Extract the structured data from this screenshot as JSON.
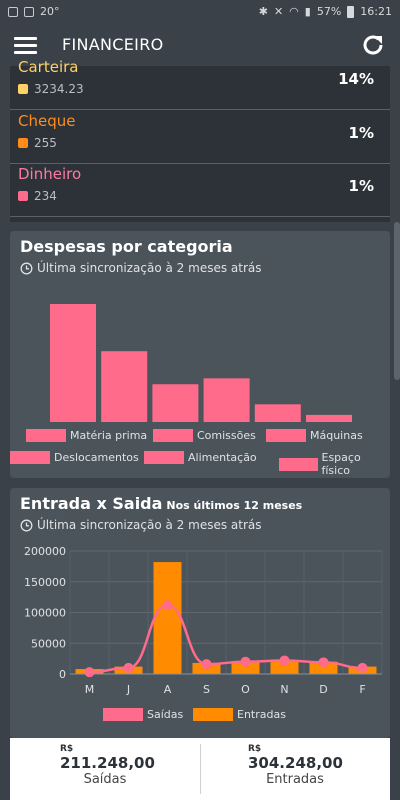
{
  "status_bar": {
    "notif_text": "20°",
    "battery": "57%",
    "time": "16:21"
  },
  "appbar": {
    "title": "FINANCEIRO"
  },
  "accounts": [
    {
      "name": "Carteira",
      "value": "3234.23",
      "percent": "14%",
      "color": "#ffd166",
      "swatch": "#ffd166"
    },
    {
      "name": "Cheque",
      "value": "255",
      "percent": "1%",
      "color": "#ff8c1a",
      "swatch": "#ff8c1a"
    },
    {
      "name": "Dinheiro",
      "value": "234",
      "percent": "1%",
      "color": "#ff7aa2",
      "swatch": "#ff6b8b"
    }
  ],
  "expenses": {
    "title": "Despesas por categoria",
    "sync": "Última sincronização à 2 meses atrás",
    "legend": [
      "Matéria prima",
      "Comissões",
      "Máquinas",
      "Deslocamentos",
      "Alimentação",
      "Espaço físico"
    ]
  },
  "flow": {
    "title": "Entrada x Saida",
    "subtitle": "Nos últimos 12 meses",
    "sync": "Última sincronização à 2 meses atrás",
    "legend": [
      "Saídas",
      "Entradas"
    ]
  },
  "totals": {
    "out": {
      "currency": "R$",
      "amount": "211.248,00",
      "label": "Saídas"
    },
    "in": {
      "currency": "R$",
      "amount": "304.248,00",
      "label": "Entradas"
    }
  },
  "chart_data": [
    {
      "type": "bar",
      "title": "Despesas por categoria",
      "categories": [
        "Matéria prima",
        "Comissões",
        "Máquinas",
        "Deslocamentos",
        "Alimentação",
        "Espaço físico"
      ],
      "values": [
        100,
        60,
        32,
        37,
        15,
        6
      ],
      "ylim": [
        0,
        100
      ],
      "color": "#ff6b8b",
      "legend_position": "bottom",
      "grid": false
    },
    {
      "type": "bar",
      "title": "Entrada x Saida",
      "categories": [
        "M",
        "J",
        "A",
        "S",
        "O",
        "N",
        "D",
        "F"
      ],
      "yticks": [
        "0",
        "50000",
        "100000",
        "150000",
        "200000"
      ],
      "ylim": [
        0,
        200000
      ],
      "series": [
        {
          "name": "Entradas",
          "type": "bar",
          "color": "#ff8c00",
          "values": [
            8000,
            12000,
            182000,
            18000,
            20000,
            22000,
            20000,
            12000
          ]
        },
        {
          "name": "Saídas",
          "type": "line",
          "color": "#ff6b8b",
          "values": [
            3000,
            10000,
            112000,
            16000,
            20000,
            22000,
            19000,
            10000
          ]
        }
      ],
      "legend_position": "bottom",
      "grid": true
    }
  ]
}
